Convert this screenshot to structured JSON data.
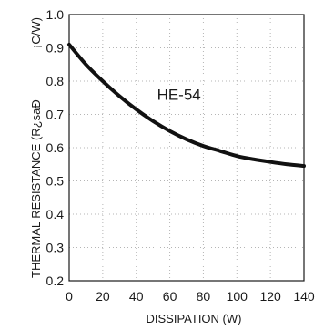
{
  "chart_data": {
    "type": "line",
    "title": "",
    "xlabel": "DISSIPATION (W)",
    "ylabel": "THERMAL RESISTANCE (R¿saÐ",
    "ylabel_unit": "¡C/W)",
    "xlim": [
      0,
      140
    ],
    "ylim": [
      0.2,
      1.0
    ],
    "xticks": [
      0,
      20,
      40,
      60,
      80,
      100,
      120,
      140
    ],
    "yticks": [
      0.2,
      0.3,
      0.4,
      0.5,
      0.6,
      0.7,
      0.8,
      0.9,
      1.0
    ],
    "xtick_labels": [
      "0",
      "20",
      "40",
      "60",
      "80",
      "100",
      "120",
      "140"
    ],
    "ytick_labels": [
      "0.2",
      "0.3",
      "0.4",
      "0.5",
      "0.6",
      "0.7",
      "0.8",
      "0.9",
      "1.0"
    ],
    "grid": true,
    "series": [
      {
        "name": "HE-54",
        "x": [
          0,
          10,
          20,
          30,
          40,
          50,
          60,
          70,
          80,
          90,
          100,
          110,
          120,
          130,
          140
        ],
        "y": [
          0.91,
          0.85,
          0.8,
          0.755,
          0.715,
          0.68,
          0.65,
          0.625,
          0.605,
          0.59,
          0.575,
          0.565,
          0.557,
          0.55,
          0.545
        ]
      }
    ],
    "annotations": [
      {
        "text": "HE-54",
        "x": 60,
        "y": 0.76
      }
    ],
    "colors": {
      "curve": "#111111",
      "grid": "#b5b5b5",
      "frame": "#1a1a1a",
      "text": "#1a1a1a"
    }
  }
}
